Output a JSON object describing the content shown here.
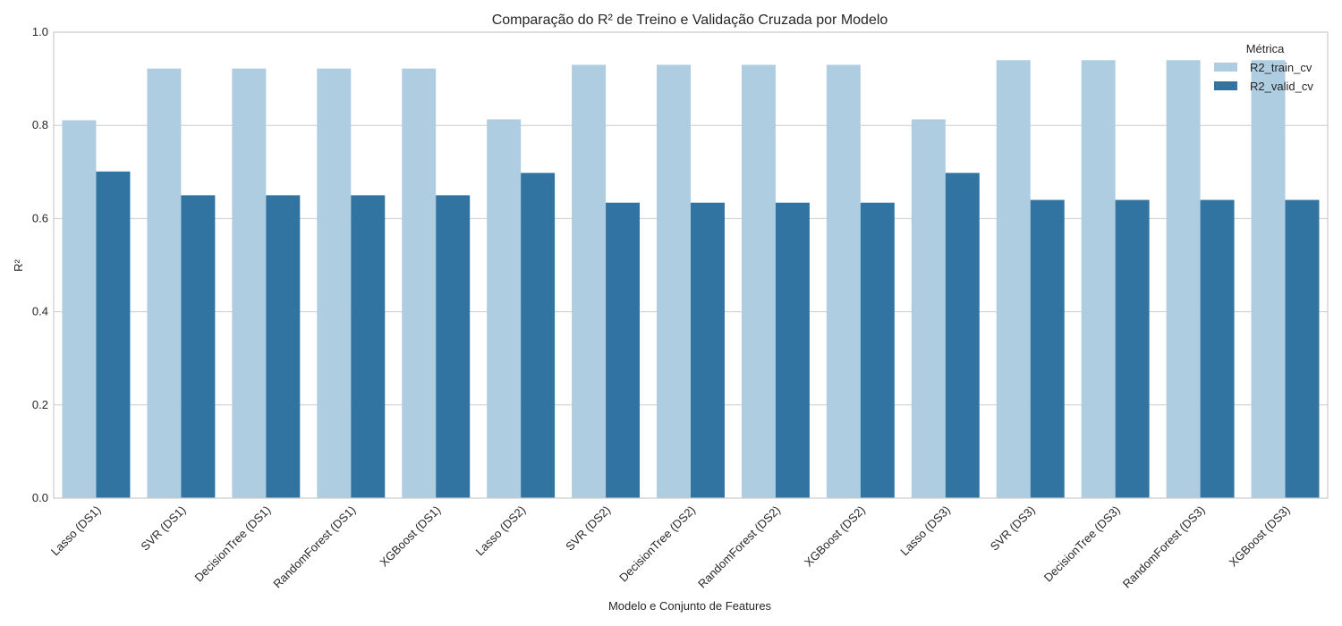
{
  "chart_data": {
    "type": "bar",
    "title": "Comparação do R² de Treino e Validação Cruzada por Modelo",
    "xlabel": "Modelo e Conjunto de Features",
    "ylabel": "R²",
    "ylim": [
      0,
      1
    ],
    "yticks": [
      "0.0",
      "0.2",
      "0.4",
      "0.6",
      "0.8",
      "1.0"
    ],
    "grid": "horizontal",
    "legend": {
      "title": "Métrica",
      "placement": "top-right"
    },
    "categories": [
      "Lasso (DS1)",
      "SVR (DS1)",
      "DecisionTree (DS1)",
      "RandomForest (DS1)",
      "XGBoost (DS1)",
      "Lasso (DS2)",
      "SVR (DS2)",
      "DecisionTree (DS2)",
      "RandomForest (DS2)",
      "XGBoost (DS2)",
      "Lasso (DS3)",
      "SVR (DS3)",
      "DecisionTree (DS3)",
      "RandomForest (DS3)",
      "XGBoost (DS3)"
    ],
    "series": [
      {
        "name": "R2_train_cv",
        "color": "#aecde1",
        "values": [
          0.811,
          0.922,
          0.922,
          0.922,
          0.922,
          0.813,
          0.93,
          0.93,
          0.93,
          0.93,
          0.813,
          0.94,
          0.94,
          0.94,
          0.94
        ]
      },
      {
        "name": "R2_valid_cv",
        "color": "#3274a1",
        "values": [
          0.701,
          0.65,
          0.65,
          0.65,
          0.65,
          0.698,
          0.634,
          0.634,
          0.634,
          0.634,
          0.698,
          0.64,
          0.64,
          0.64,
          0.64
        ]
      }
    ]
  }
}
